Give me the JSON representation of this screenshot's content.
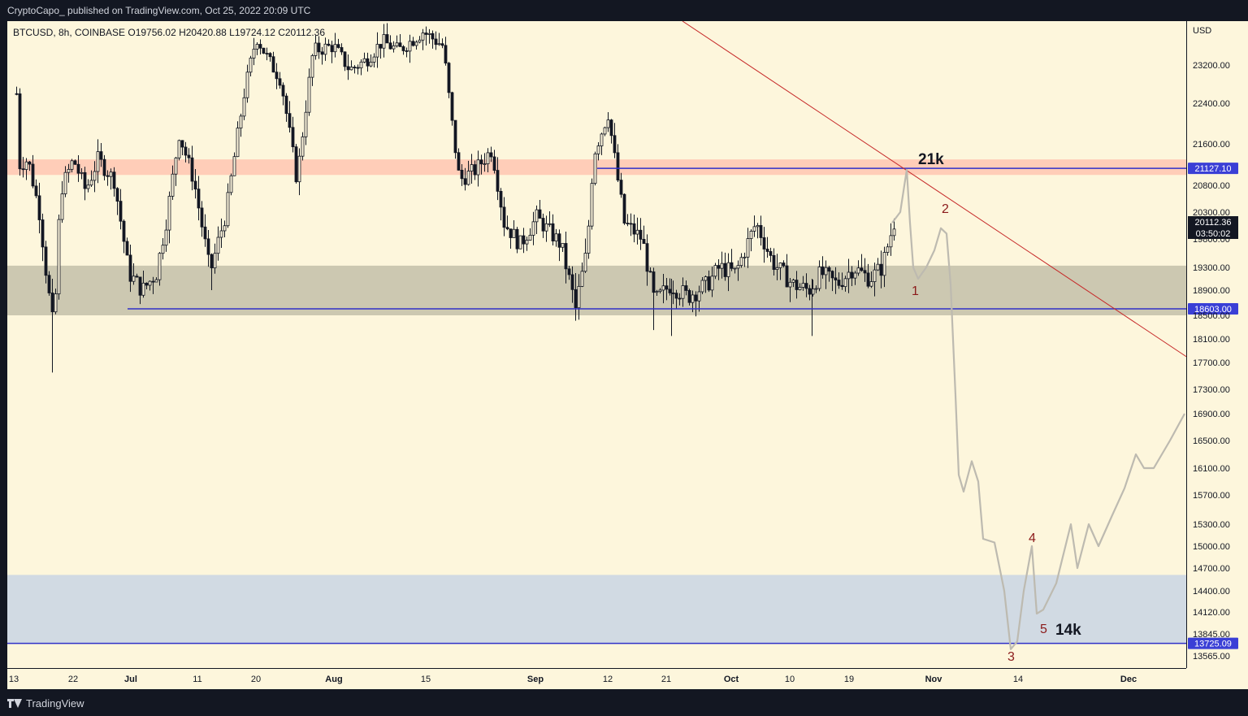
{
  "header": {
    "published": "CryptoCapo_ published on TradingView.com, Oct 25, 2022 20:09 UTC"
  },
  "footer": {
    "brand": "TradingView"
  },
  "chart_data": {
    "type": "candlestick",
    "symbol_line": "BTCUSD, 8h, COINBASE  O19756.02  H20420.88  L19724.12  C20112.36",
    "currency": "USD",
    "y_ticks": [
      23200,
      22400,
      21600,
      20800,
      20300,
      19800,
      19300,
      18900,
      18500,
      18100,
      17700,
      17300,
      16900,
      16500,
      16100,
      15700,
      15300,
      15000,
      14700,
      14400,
      14120,
      13845,
      13565
    ],
    "y_tick_labels": [
      "23200.00",
      "22400.00",
      "21600.00",
      "20800.00",
      "20300.00",
      "19800.00",
      "19300.00",
      "18900.00",
      "18500.00",
      "18100.00",
      "17700.00",
      "17300.00",
      "16900.00",
      "16500.00",
      "16100.00",
      "15700.00",
      "15300.00",
      "15000.00",
      "14700.00",
      "14400.00",
      "14120.00",
      "13845.00",
      "13565.00"
    ],
    "x_labels": [
      "13",
      "22",
      "Jul",
      "11",
      "20",
      "Aug",
      "15",
      "Sep",
      "12",
      "21",
      "Oct",
      "10",
      "19",
      "Nov",
      "14",
      "Dec"
    ],
    "x_label_bold": [
      "Jul",
      "Aug",
      "Sep",
      "Oct",
      "Nov",
      "Dec"
    ],
    "zones": [
      {
        "name": "resistance",
        "from": 21000,
        "to": 21300,
        "color": "#ffcdb8"
      },
      {
        "name": "range",
        "from": 18500,
        "to": 19330,
        "color": "#ccc8b1"
      },
      {
        "name": "target",
        "from": 13725,
        "to": 14610,
        "color": "#d1dae3"
      }
    ],
    "levels": [
      {
        "price": 21127.1,
        "label": "21127.10",
        "color": "#3030c8"
      },
      {
        "price": 18603.0,
        "label": "18603.00",
        "color": "#3030c8"
      },
      {
        "price": 13725.09,
        "label": "13725.09",
        "color": "#3030c8"
      }
    ],
    "last_price": {
      "label": "20112.36",
      "countdown": "03:50:02"
    },
    "annotations": {
      "target_high": "21k",
      "target_low": "14k",
      "waves": [
        "1",
        "2",
        "3",
        "4",
        "5"
      ]
    },
    "background": "#fdf6dc",
    "trendline_color": "#c62828",
    "projection_color": "#bdbab0"
  }
}
